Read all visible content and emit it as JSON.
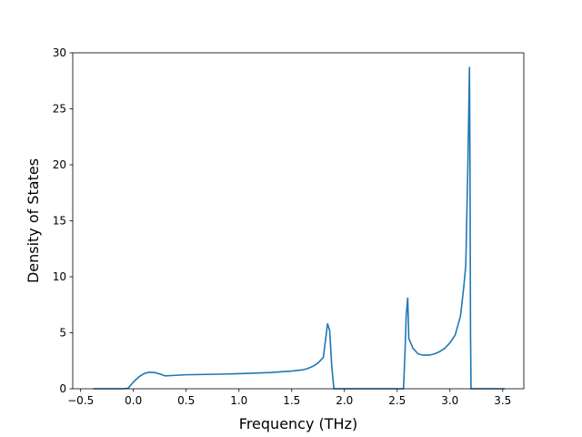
{
  "chart_data": {
    "type": "line",
    "title": "",
    "xlabel": "Frequency (THz)",
    "ylabel": "Density of States",
    "xlim": [
      -0.575,
      3.7
    ],
    "ylim": [
      0,
      30
    ],
    "x_ticks": [
      -0.5,
      0.0,
      0.5,
      1.0,
      1.5,
      2.0,
      2.5,
      3.0,
      3.5
    ],
    "x_tick_labels": [
      "−0.5",
      "0.0",
      "0.5",
      "1.0",
      "1.5",
      "2.0",
      "2.5",
      "3.0",
      "3.5"
    ],
    "y_ticks": [
      0,
      5,
      10,
      15,
      20,
      25,
      30
    ],
    "y_tick_labels": [
      "0",
      "5",
      "10",
      "15",
      "20",
      "25",
      "30"
    ],
    "grid": false,
    "legend": "none",
    "color": "#1f77b4",
    "series": [
      {
        "x": [
          -0.38,
          -0.3,
          -0.2,
          -0.1,
          -0.05,
          0.0,
          0.05,
          0.1,
          0.15,
          0.2,
          0.25,
          0.3,
          0.4,
          0.5,
          0.7,
          0.9,
          1.1,
          1.3,
          1.5,
          1.6,
          1.65,
          1.7,
          1.75,
          1.8,
          1.84,
          1.86,
          1.88,
          1.9,
          1.91,
          2.0,
          2.2,
          2.4,
          2.56,
          2.575,
          2.585,
          2.6,
          2.61,
          2.65,
          2.7,
          2.75,
          2.8,
          2.85,
          2.9,
          2.95,
          3.0,
          3.05,
          3.1,
          3.13,
          3.15,
          3.17,
          3.185,
          3.19,
          3.195,
          3.2,
          3.21,
          3.3,
          3.4,
          3.52
        ],
        "y": [
          0,
          0,
          0,
          0,
          0.05,
          0.6,
          1.05,
          1.35,
          1.48,
          1.45,
          1.32,
          1.15,
          1.2,
          1.25,
          1.28,
          1.32,
          1.38,
          1.45,
          1.58,
          1.68,
          1.8,
          2.0,
          2.3,
          2.8,
          5.8,
          5.2,
          2.0,
          0,
          0,
          0,
          0,
          0,
          0,
          3.5,
          6.5,
          8.1,
          4.5,
          3.6,
          3.1,
          3.0,
          3.0,
          3.1,
          3.3,
          3.6,
          4.1,
          4.8,
          6.5,
          9.0,
          11.0,
          20.0,
          28.7,
          20.0,
          5.0,
          0,
          0,
          0,
          0,
          0
        ]
      }
    ]
  }
}
